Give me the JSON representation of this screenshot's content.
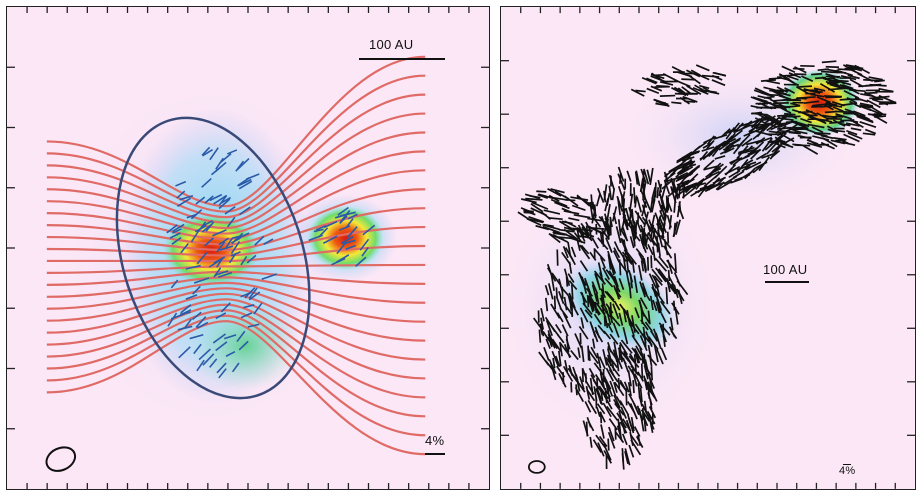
{
  "panels": {
    "left": {
      "scale_label": "100 AU",
      "pol_scale_label": "4%"
    },
    "right": {
      "scale_label": "100 AU",
      "pol_scale_label": "4%"
    }
  },
  "colors": {
    "background": "#fbe7f6",
    "field_lines": "#e06a66",
    "ellipse_outline": "#3a4a78",
    "vectors_left": "#2a5aa8",
    "vectors_right": "#111111",
    "emission_peak": "#e32515"
  }
}
